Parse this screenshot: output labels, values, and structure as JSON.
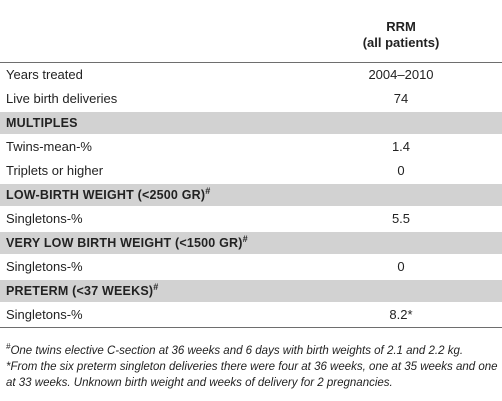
{
  "header": {
    "column_title_line1": "RRM",
    "column_title_line2": "(all patients)"
  },
  "rows": [
    {
      "label": "Years treated",
      "value": "2004–2010"
    },
    {
      "label": "Live birth deliveries",
      "value": "74"
    }
  ],
  "sections": [
    {
      "title": "MULTIPLES",
      "marker": "",
      "rows": [
        {
          "label": "Twins-mean-%",
          "value": "1.4"
        },
        {
          "label": "Triplets or higher",
          "value": "0"
        }
      ]
    },
    {
      "title": "LOW-BIRTH WEIGHT (<2500 GR)",
      "marker": "#",
      "rows": [
        {
          "label": "Singletons-%",
          "value": "5.5"
        }
      ]
    },
    {
      "title": "VERY LOW BIRTH WEIGHT (<1500 GR)",
      "marker": "#",
      "rows": [
        {
          "label": "Singletons-%",
          "value": "0"
        }
      ]
    },
    {
      "title": "PRETERM (<37 WEEKS)",
      "marker": "#",
      "rows": [
        {
          "label": "Singletons-%",
          "value": "8.2*"
        }
      ]
    }
  ],
  "footnotes": {
    "note1_marker": "#",
    "note1_text": "One twins elective C-section at 36 weeks and 6 days with birth weights of 2.1 and 2.2 kg.",
    "note2_text": "*From the six preterm singleton deliveries there were four at 36 weeks, one at 35 weeks and one at 33 weeks. Unknown birth weight and weeks of delivery for 2 pregnancies."
  }
}
